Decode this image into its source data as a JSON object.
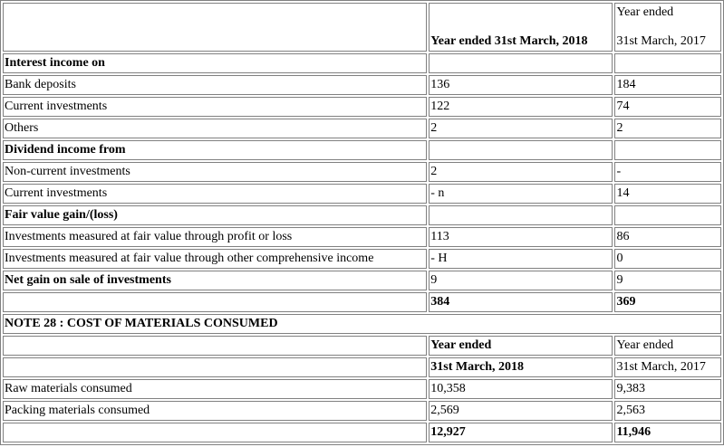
{
  "header": {
    "col2": "Year ended 31st March, 2018",
    "col3_line1": "Year ended",
    "col3_line2": "31st March, 2017"
  },
  "rows": [
    {
      "label": "Interest income on",
      "v2018": "",
      "v2017": "",
      "bold": true
    },
    {
      "label": "Bank deposits",
      "v2018": "136",
      "v2017": "184"
    },
    {
      "label": "Current investments",
      "v2018": "122",
      "v2017": "74"
    },
    {
      "label": "Others",
      "v2018": "2",
      "v2017": "2"
    },
    {
      "label": "Dividend income from",
      "v2018": "",
      "v2017": "",
      "bold": true
    },
    {
      "label": "Non-current investments",
      "v2018": "2",
      "v2017": "-"
    },
    {
      "label": "Current investments",
      "v2018": "- n",
      "v2017": "14"
    },
    {
      "label": "Fair value gain/(loss)",
      "v2018": "",
      "v2017": "",
      "bold": true
    },
    {
      "label": "Investments measured at fair value through profit or loss",
      "v2018": "113",
      "v2017": "86"
    },
    {
      "label": "Investments measured at fair value through other comprehensive income",
      "v2018": "- H",
      "v2017": "0"
    },
    {
      "label": "Net gain on sale of investments",
      "v2018": "9",
      "v2017": "9",
      "bold": true
    },
    {
      "label": "",
      "v2018": "384",
      "v2017": "369",
      "total": true
    }
  ],
  "note28": {
    "title": "NOTE 28 : COST OF MATERIALS CONSUMED",
    "head1": {
      "c2": "Year ended",
      "c3": "Year ended"
    },
    "head2": {
      "c2": "31st March, 2018",
      "c3": "31st March, 2017"
    },
    "rows": [
      {
        "label": "Raw materials consumed",
        "v2018": "10,358",
        "v2017": "9,383"
      },
      {
        "label": "Packing materials consumed",
        "v2018": "2,569",
        "v2017": "2,563"
      },
      {
        "label": "",
        "v2018": "12,927",
        "v2017": "11,946",
        "total": true
      }
    ]
  }
}
